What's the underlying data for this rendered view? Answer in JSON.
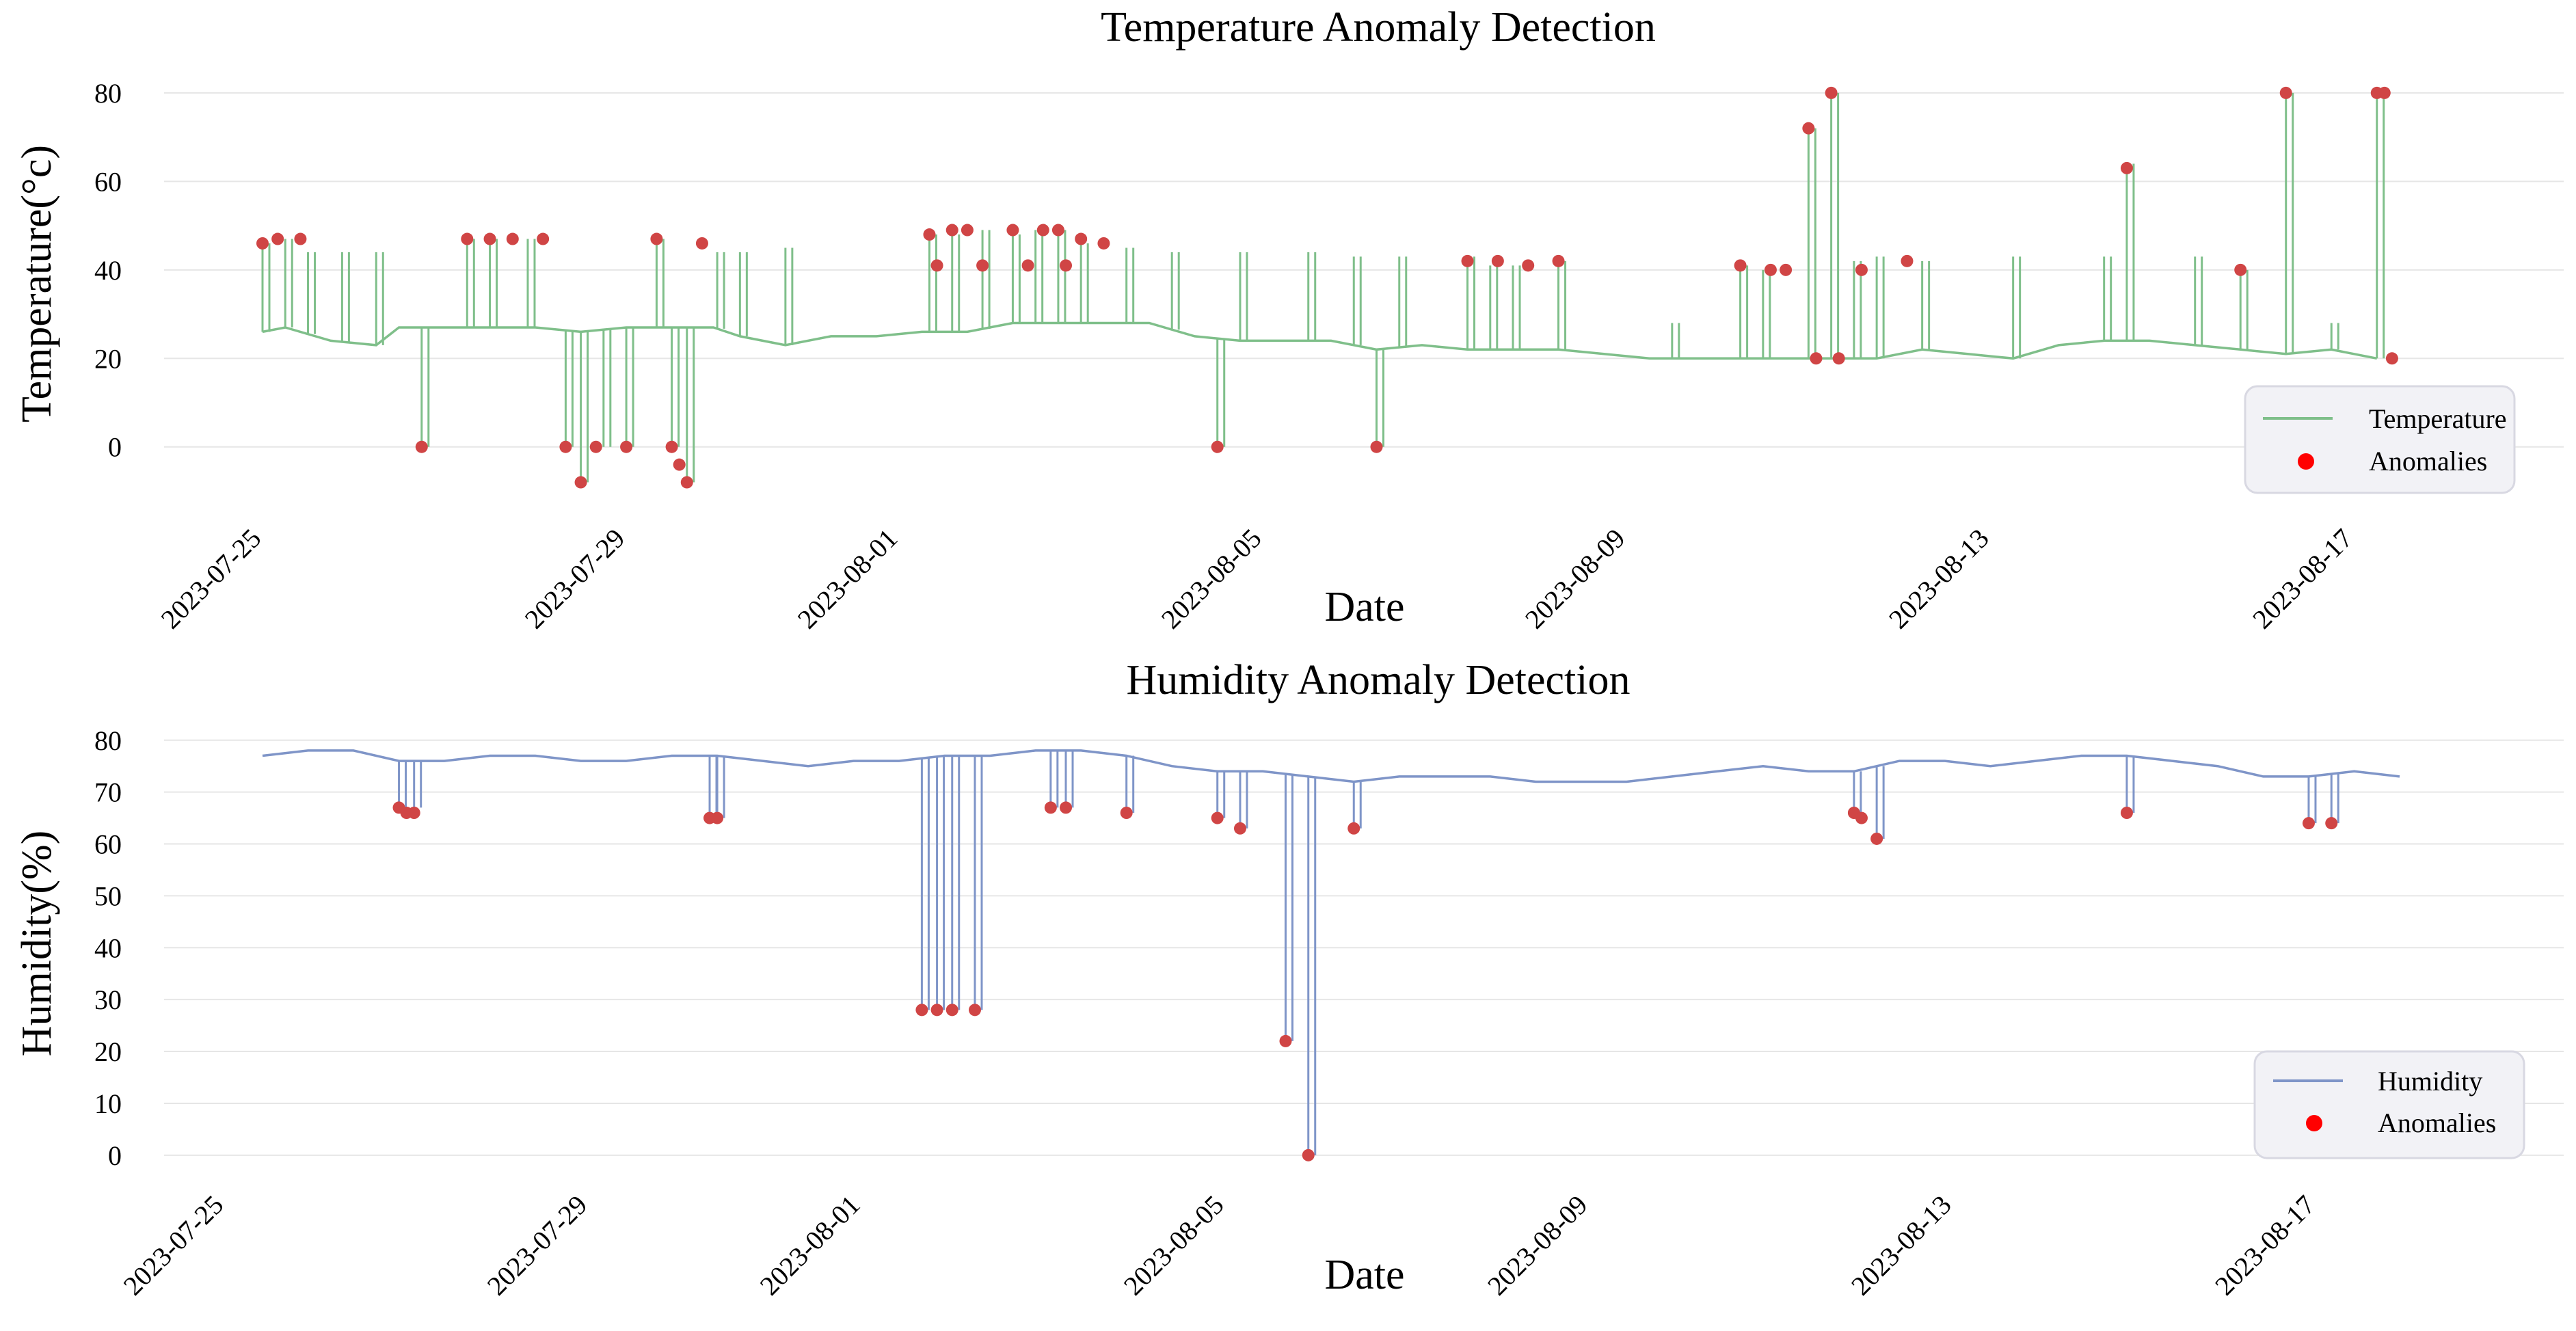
{
  "chart_data": [
    {
      "type": "line",
      "title": "Temperature Anomaly Detection",
      "xlabel": "Date",
      "ylabel": "Temperature(°c)",
      "x_ticks": [
        "2023-07-25",
        "2023-07-29",
        "2023-08-01",
        "2023-08-05",
        "2023-08-09",
        "2023-08-13",
        "2023-08-17"
      ],
      "y_ticks": [
        "0",
        "20",
        "40",
        "60",
        "80"
      ],
      "ylim": [
        -9,
        84
      ],
      "grid": "horizontal",
      "legend_position": "bottom-right",
      "colors": {
        "line": "#7fbf8a",
        "anomaly": "#d04545",
        "legend_marker": "#ff0000"
      },
      "series": [
        {
          "name": "Temperature",
          "x": [
            "2023-07-25T00:00",
            "2023-07-25T06:00",
            "2023-07-25T18:00",
            "2023-07-26T06:00",
            "2023-07-26T12:00",
            "2023-07-27T00:00",
            "2023-07-27T12:00",
            "2023-07-28T00:00",
            "2023-07-28T12:00",
            "2023-07-29T00:00",
            "2023-07-29T12:00",
            "2023-07-29T23:00",
            "2023-07-30T06:00",
            "2023-07-30T18:00",
            "2023-07-31T06:00",
            "2023-07-31T18:00",
            "2023-08-01T06:00",
            "2023-08-01T18:00",
            "2023-08-02T06:00",
            "2023-08-02T18:00",
            "2023-08-03T06:00",
            "2023-08-03T18:00",
            "2023-08-04T06:00",
            "2023-08-04T18:00",
            "2023-08-05T06:00",
            "2023-08-05T18:00",
            "2023-08-06T06:00",
            "2023-08-06T18:00",
            "2023-08-07T06:00",
            "2023-08-07T18:00",
            "2023-08-08T06:00",
            "2023-08-08T18:00",
            "2023-08-09T06:00",
            "2023-08-09T18:00",
            "2023-08-10T06:00",
            "2023-08-10T18:00",
            "2023-08-11T06:00",
            "2023-08-11T18:00",
            "2023-08-12T06:00",
            "2023-08-12T18:00",
            "2023-08-13T06:00",
            "2023-08-13T18:00",
            "2023-08-14T06:00",
            "2023-08-14T18:00",
            "2023-08-15T06:00",
            "2023-08-15T18:00",
            "2023-08-16T06:00",
            "2023-08-16T18:00",
            "2023-08-17T06:00"
          ],
          "y": [
            26,
            27,
            24,
            23,
            27,
            27,
            27,
            27,
            26,
            27,
            27,
            27,
            25,
            23,
            25,
            25,
            26,
            26,
            28,
            28,
            28,
            28,
            25,
            24,
            24,
            24,
            22,
            23,
            22,
            22,
            22,
            21,
            20,
            20,
            20,
            20,
            20,
            20,
            22,
            21,
            20,
            23,
            24,
            24,
            23,
            22,
            21,
            22,
            20
          ],
          "spikes": [
            [
              "2023-07-25T00:00",
              46
            ],
            [
              "2023-07-25T06:00",
              47
            ],
            [
              "2023-07-25T12:00",
              44
            ],
            [
              "2023-07-25T21:00",
              44
            ],
            [
              "2023-07-26T06:00",
              44
            ],
            [
              "2023-07-26T18:00",
              0
            ],
            [
              "2023-07-27T06:00",
              47
            ],
            [
              "2023-07-27T12:00",
              47
            ],
            [
              "2023-07-27T22:00",
              47
            ],
            [
              "2023-07-28T08:00",
              0
            ],
            [
              "2023-07-28T12:00",
              -8
            ],
            [
              "2023-07-28T18:00",
              0
            ],
            [
              "2023-07-29T00:00",
              0
            ],
            [
              "2023-07-29T08:00",
              47
            ],
            [
              "2023-07-29T12:00",
              0
            ],
            [
              "2023-07-29T16:00",
              -8
            ],
            [
              "2023-07-30T00:00",
              44
            ],
            [
              "2023-07-30T06:00",
              44
            ],
            [
              "2023-07-30T18:00",
              45
            ],
            [
              "2023-08-01T08:00",
              48
            ],
            [
              "2023-08-01T14:00",
              48
            ],
            [
              "2023-08-01T22:00",
              49
            ],
            [
              "2023-08-02T06:00",
              48
            ],
            [
              "2023-08-02T12:00",
              49
            ],
            [
              "2023-08-02T18:00",
              49
            ],
            [
              "2023-08-03T00:00",
              46
            ],
            [
              "2023-08-03T12:00",
              45
            ],
            [
              "2023-08-04T00:00",
              44
            ],
            [
              "2023-08-04T12:00",
              0
            ],
            [
              "2023-08-04T18:00",
              44
            ],
            [
              "2023-08-05T12:00",
              44
            ],
            [
              "2023-08-06T00:00",
              43
            ],
            [
              "2023-08-06T06:00",
              0
            ],
            [
              "2023-08-06T12:00",
              43
            ],
            [
              "2023-08-07T06:00",
              43
            ],
            [
              "2023-08-07T12:00",
              41
            ],
            [
              "2023-08-07T18:00",
              41
            ],
            [
              "2023-08-08T06:00",
              42
            ],
            [
              "2023-08-09T12:00",
              28
            ],
            [
              "2023-08-10T06:00",
              41
            ],
            [
              "2023-08-10T12:00",
              40
            ],
            [
              "2023-08-11T00:00",
              72
            ],
            [
              "2023-08-11T06:00",
              80
            ],
            [
              "2023-08-11T12:00",
              42
            ],
            [
              "2023-08-11T18:00",
              43
            ],
            [
              "2023-08-12T06:00",
              42
            ],
            [
              "2023-08-13T06:00",
              43
            ],
            [
              "2023-08-14T06:00",
              43
            ],
            [
              "2023-08-14T12:00",
              64
            ],
            [
              "2023-08-15T06:00",
              43
            ],
            [
              "2023-08-15T18:00",
              40
            ],
            [
              "2023-08-16T06:00",
              80
            ],
            [
              "2023-08-16T18:00",
              28
            ],
            [
              "2023-08-17T06:00",
              80
            ]
          ]
        },
        {
          "name": "Anomalies",
          "x": [
            "2023-07-25T00:00",
            "2023-07-25T04:00",
            "2023-07-25T10:00",
            "2023-07-26T18:00",
            "2023-07-27T06:00",
            "2023-07-27T12:00",
            "2023-07-27T18:00",
            "2023-07-28T02:00",
            "2023-07-28T08:00",
            "2023-07-28T12:00",
            "2023-07-28T16:00",
            "2023-07-29T00:00",
            "2023-07-29T08:00",
            "2023-07-29T12:00",
            "2023-07-29T14:00",
            "2023-07-29T16:00",
            "2023-07-29T20:00",
            "2023-08-01T08:00",
            "2023-08-01T10:00",
            "2023-08-01T14:00",
            "2023-08-01T18:00",
            "2023-08-01T22:00",
            "2023-08-02T06:00",
            "2023-08-02T10:00",
            "2023-08-02T14:00",
            "2023-08-02T18:00",
            "2023-08-02T20:00",
            "2023-08-03T00:00",
            "2023-08-03T06:00",
            "2023-08-04T12:00",
            "2023-08-06T06:00",
            "2023-08-07T06:00",
            "2023-08-07T14:00",
            "2023-08-07T22:00",
            "2023-08-08T06:00",
            "2023-08-10T06:00",
            "2023-08-10T14:00",
            "2023-08-10T18:00",
            "2023-08-11T00:00",
            "2023-08-11T02:00",
            "2023-08-11T06:00",
            "2023-08-11T08:00",
            "2023-08-11T14:00",
            "2023-08-12T02:00",
            "2023-08-14T12:00",
            "2023-08-15T18:00",
            "2023-08-16T06:00",
            "2023-08-17T06:00",
            "2023-08-17T08:00",
            "2023-08-17T10:00"
          ],
          "y": [
            46,
            47,
            47,
            0,
            47,
            47,
            47,
            47,
            0,
            -8,
            0,
            0,
            47,
            0,
            -4,
            -8,
            46,
            48,
            41,
            49,
            49,
            41,
            49,
            41,
            49,
            49,
            41,
            47,
            46,
            0,
            0,
            42,
            42,
            41,
            42,
            41,
            40,
            40,
            72,
            20,
            80,
            20,
            40,
            42,
            63,
            40,
            80,
            80,
            80,
            20
          ]
        }
      ]
    },
    {
      "type": "line",
      "title": "Humidity Anomaly Detection",
      "xlabel": "Date",
      "ylabel": "Humidity(%)",
      "x_ticks": [
        "2023-07-25",
        "2023-07-29",
        "2023-08-01",
        "2023-08-05",
        "2023-08-09",
        "2023-08-13",
        "2023-08-17"
      ],
      "y_ticks": [
        "0",
        "10",
        "20",
        "30",
        "40",
        "50",
        "60",
        "70",
        "80"
      ],
      "ylim": [
        -2,
        83
      ],
      "grid": "horizontal",
      "legend_position": "bottom-right",
      "colors": {
        "line": "#7f95c8",
        "anomaly": "#d04545",
        "legend_marker": "#ff0000"
      },
      "series": [
        {
          "name": "Humidity",
          "x": [
            "2023-07-25T00:00",
            "2023-07-25T12:00",
            "2023-07-26T00:00",
            "2023-07-26T12:00",
            "2023-07-27T00:00",
            "2023-07-27T12:00",
            "2023-07-28T00:00",
            "2023-07-28T12:00",
            "2023-07-29T00:00",
            "2023-07-29T12:00",
            "2023-07-30T00:00",
            "2023-07-30T12:00",
            "2023-07-31T00:00",
            "2023-07-31T12:00",
            "2023-08-01T00:00",
            "2023-08-01T12:00",
            "2023-08-02T00:00",
            "2023-08-02T12:00",
            "2023-08-03T00:00",
            "2023-08-03T12:00",
            "2023-08-04T00:00",
            "2023-08-04T12:00",
            "2023-08-05T00:00",
            "2023-08-05T12:00",
            "2023-08-06T00:00",
            "2023-08-06T12:00",
            "2023-08-07T00:00",
            "2023-08-07T12:00",
            "2023-08-08T00:00",
            "2023-08-08T12:00",
            "2023-08-09T00:00",
            "2023-08-09T12:00",
            "2023-08-10T00:00",
            "2023-08-10T12:00",
            "2023-08-11T00:00",
            "2023-08-11T12:00",
            "2023-08-12T00:00",
            "2023-08-12T12:00",
            "2023-08-13T00:00",
            "2023-08-13T12:00",
            "2023-08-14T00:00",
            "2023-08-14T12:00",
            "2023-08-15T00:00",
            "2023-08-15T12:00",
            "2023-08-16T00:00",
            "2023-08-16T12:00",
            "2023-08-17T00:00",
            "2023-08-17T12:00"
          ],
          "y": [
            77,
            78,
            78,
            76,
            76,
            77,
            77,
            76,
            76,
            77,
            77,
            76,
            75,
            76,
            76,
            77,
            77,
            78,
            78,
            77,
            75,
            74,
            74,
            73,
            72,
            73,
            73,
            73,
            72,
            72,
            72,
            73,
            74,
            75,
            74,
            74,
            76,
            76,
            75,
            76,
            77,
            77,
            76,
            75,
            73,
            73,
            74,
            73
          ],
          "spikes": [
            [
              "2023-07-26T12:00",
              66
            ],
            [
              "2023-07-26T16:00",
              67
            ],
            [
              "2023-07-29T22:00",
              65
            ],
            [
              "2023-07-30T00:00",
              65
            ],
            [
              "2023-08-01T06:00",
              28
            ],
            [
              "2023-08-01T10:00",
              28
            ],
            [
              "2023-08-01T14:00",
              28
            ],
            [
              "2023-08-01T20:00",
              28
            ],
            [
              "2023-08-02T16:00",
              67
            ],
            [
              "2023-08-02T20:00",
              67
            ],
            [
              "2023-08-03T12:00",
              66
            ],
            [
              "2023-08-04T12:00",
              65
            ],
            [
              "2023-08-04T18:00",
              63
            ],
            [
              "2023-08-05T06:00",
              22
            ],
            [
              "2023-08-05T12:00",
              0
            ],
            [
              "2023-08-06T00:00",
              63
            ],
            [
              "2023-08-11T12:00",
              66
            ],
            [
              "2023-08-11T18:00",
              61
            ],
            [
              "2023-08-14T12:00",
              66
            ],
            [
              "2023-08-16T12:00",
              64
            ],
            [
              "2023-08-16T18:00",
              64
            ]
          ]
        },
        {
          "name": "Anomalies",
          "x": [
            "2023-07-26T12:00",
            "2023-07-26T14:00",
            "2023-07-26T16:00",
            "2023-07-29T22:00",
            "2023-07-30T00:00",
            "2023-08-01T06:00",
            "2023-08-01T10:00",
            "2023-08-01T14:00",
            "2023-08-01T20:00",
            "2023-08-02T16:00",
            "2023-08-02T20:00",
            "2023-08-03T12:00",
            "2023-08-04T12:00",
            "2023-08-04T18:00",
            "2023-08-05T06:00",
            "2023-08-05T12:00",
            "2023-08-06T00:00",
            "2023-08-11T12:00",
            "2023-08-11T14:00",
            "2023-08-11T18:00",
            "2023-08-14T12:00",
            "2023-08-16T12:00",
            "2023-08-16T18:00"
          ],
          "y": [
            67,
            66,
            66,
            65,
            65,
            28,
            28,
            28,
            28,
            67,
            67,
            66,
            65,
            63,
            22,
            0,
            63,
            66,
            65,
            61,
            66,
            64,
            64
          ]
        }
      ]
    }
  ]
}
